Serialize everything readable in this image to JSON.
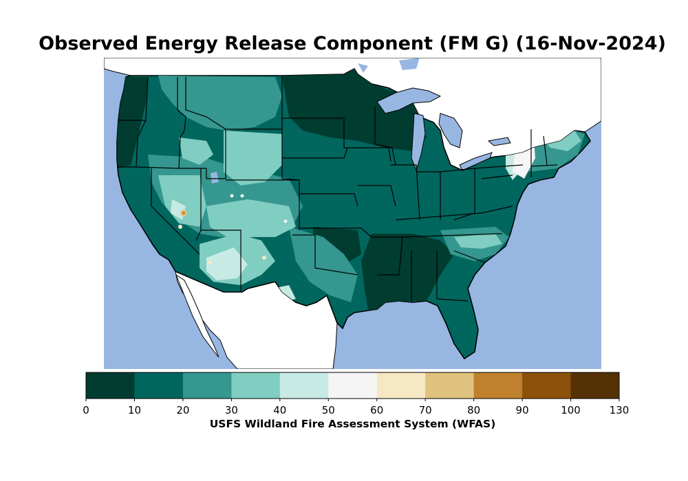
{
  "title": "Observed Energy Release Component (FM G) (16-Nov-2024)",
  "colorbar": {
    "label": "USFS Wildland Fire Assessment System (WFAS)",
    "ticks": [
      "0",
      "10",
      "20",
      "30",
      "40",
      "50",
      "60",
      "70",
      "80",
      "90",
      "100",
      "130"
    ],
    "colors": [
      "#003c30",
      "#01665e",
      "#35978f",
      "#80cdc1",
      "#c7eae5",
      "#f5f5f5",
      "#f6e8c3",
      "#dfc27d",
      "#bf812d",
      "#8c510a",
      "#543005"
    ]
  },
  "colors": {
    "ocean": "#97b6e1",
    "land_outside": "#ffffff",
    "border": "#000000"
  }
}
